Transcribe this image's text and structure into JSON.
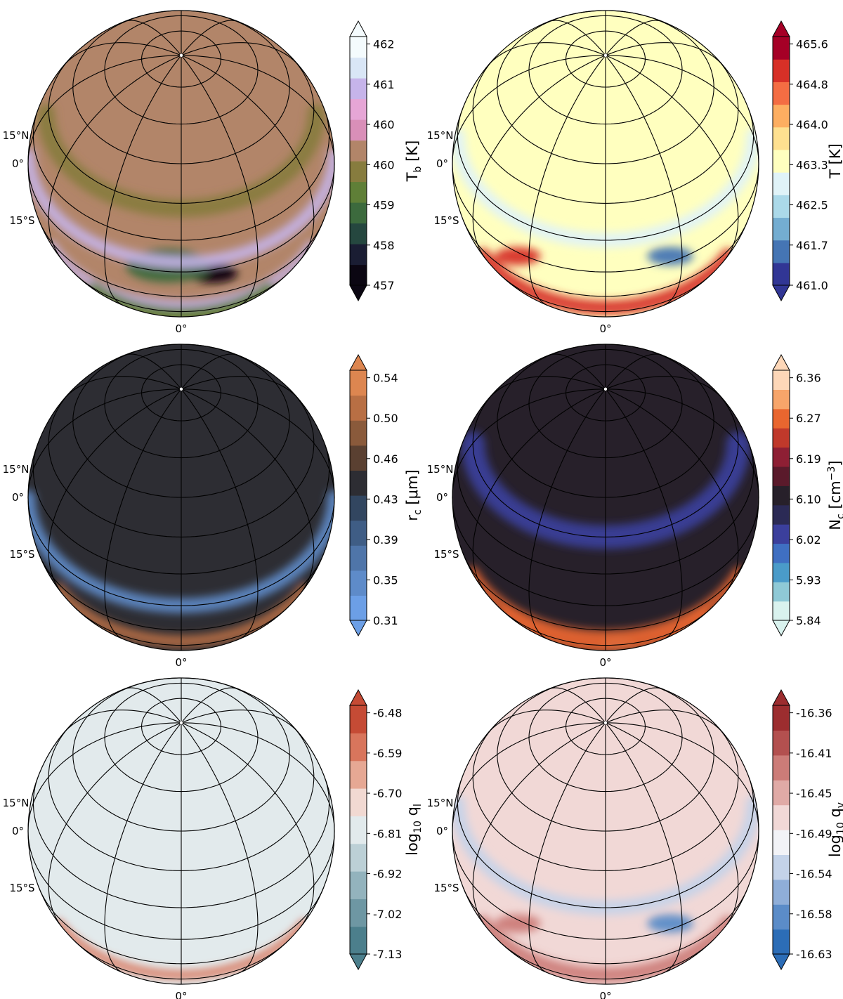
{
  "chart_data": [
    {
      "type": "heatmap",
      "projection": "orthographic",
      "colorbar": {
        "label": "T",
        "label_sub": "b",
        "label_units": " [K]",
        "ticks": [
          "457",
          "458",
          "459",
          "460",
          "460",
          "461",
          "462"
        ],
        "extend": "both",
        "colors": [
          "#0b0612",
          "#1a1d33",
          "#25473f",
          "#3c6a3d",
          "#5f7f37",
          "#877c3e",
          "#b28569",
          "#d98fb8",
          "#e6a6d6",
          "#c6b4ea",
          "#d9e6f6",
          "#f4fbfd"
        ]
      },
      "latitude_labels": [
        "15°N",
        "0°",
        "15°S"
      ],
      "longitude_labels": [
        "0°"
      ],
      "features": [
        {
          "kind": "spot",
          "lon": 12,
          "lat": -2,
          "level": 0.02,
          "size": 0.32
        },
        {
          "kind": "spot",
          "lon": -5,
          "lat": 3,
          "level": 0.25,
          "size": 0.55
        },
        {
          "kind": "band",
          "lat": 5,
          "level": 0.78,
          "width": 4
        },
        {
          "kind": "band",
          "lat": -22,
          "level": 0.78,
          "width": 3
        },
        {
          "kind": "band",
          "lat": -35,
          "level": 0.4,
          "width": 5
        },
        {
          "kind": "band",
          "lat": 28,
          "level": 0.45,
          "width": 6
        }
      ]
    },
    {
      "type": "heatmap",
      "projection": "orthographic",
      "colorbar": {
        "label": "T",
        "label_sub": "",
        "label_units": " [K]",
        "ticks": [
          "461.0",
          "461.7",
          "462.5",
          "463.3",
          "464.0",
          "464.8",
          "465.6"
        ],
        "extend": "both",
        "colors": [
          "#313695",
          "#4575b4",
          "#74add1",
          "#abd9e9",
          "#e0f3f8",
          "#ffffbf",
          "#fee090",
          "#fdae61",
          "#f46d43",
          "#d73027",
          "#a50026"
        ]
      },
      "latitude_labels": [
        "15°N",
        "0°",
        "15°S"
      ],
      "longitude_labels": [
        "0°"
      ],
      "features": [
        {
          "kind": "spot",
          "lon": 25,
          "lat": 3,
          "level": 0.1,
          "size": 0.3
        },
        {
          "kind": "spot",
          "lon": -35,
          "lat": -2,
          "level": 0.85,
          "size": 0.3
        },
        {
          "kind": "band",
          "lat": -25,
          "level": 0.9,
          "width": 5
        },
        {
          "kind": "band",
          "lat": 15,
          "level": 0.38,
          "width": 5
        }
      ]
    },
    {
      "type": "heatmap",
      "projection": "orthographic",
      "colorbar": {
        "label": "r",
        "label_sub": "c",
        "label_units": " [μm]",
        "ticks": [
          "0.31",
          "0.35",
          "0.39",
          "0.43",
          "0.46",
          "0.50",
          "0.54"
        ],
        "extend": "both",
        "colors": [
          "#6c9fe6",
          "#5e8bc9",
          "#4f75a9",
          "#3f5d85",
          "#324660",
          "#2d2d33",
          "#5a4031",
          "#8a5a3b",
          "#b86f44",
          "#dd8650"
        ]
      },
      "latitude_labels": [
        "15°N",
        "0°",
        "15°S"
      ],
      "longitude_labels": [
        "0°"
      ],
      "features": [
        {
          "kind": "band",
          "lat": -25,
          "level": 0.9,
          "width": 4
        },
        {
          "kind": "band",
          "lat": 0,
          "level": 0.08,
          "width": 5
        }
      ]
    },
    {
      "type": "heatmap",
      "projection": "orthographic",
      "colorbar": {
        "label": "N",
        "label_sub": "c",
        "label_units": " [cm",
        "label_sup": "−3",
        "label_tail": "]",
        "ticks": [
          "5.84",
          "5.93",
          "6.02",
          "6.10",
          "6.19",
          "6.27",
          "6.36"
        ],
        "extend": "both",
        "colors": [
          "#d9f2ee",
          "#8fc9d6",
          "#4a9bc9",
          "#3f6fc2",
          "#3b3f9c",
          "#2b2a55",
          "#27202a",
          "#5a1a2b",
          "#8e1f34",
          "#c0392b",
          "#e9662f",
          "#f7a56a",
          "#fdd7b8"
        ]
      },
      "latitude_labels": [
        "15°N",
        "0°",
        "15°S"
      ],
      "longitude_labels": [
        "0°"
      ],
      "features": [
        {
          "kind": "spot",
          "lon": 5,
          "lat": -28,
          "level": 0.18,
          "size": 0.2
        },
        {
          "kind": "band",
          "lat": -20,
          "level": 0.85,
          "width": 4
        },
        {
          "kind": "band",
          "lat": -32,
          "level": 0.82,
          "width": 4
        },
        {
          "kind": "band",
          "lat": 30,
          "level": 0.35,
          "width": 8
        }
      ]
    },
    {
      "type": "heatmap",
      "projection": "orthographic",
      "colorbar": {
        "label": "log",
        "label_sub": "10",
        "label_units": " q",
        "label_sub2": "l",
        "ticks": [
          "-7.13",
          "-7.02",
          "-6.92",
          "-6.81",
          "-6.70",
          "-6.59",
          "-6.48"
        ],
        "extend": "both",
        "colors": [
          "#4c7f8c",
          "#6e97a3",
          "#93b3bd",
          "#bcd0d6",
          "#e2eaec",
          "#f1d9d2",
          "#e6a894",
          "#d8755c",
          "#c54b35"
        ]
      },
      "latitude_labels": [
        "15°N",
        "0°",
        "15°S"
      ],
      "longitude_labels": [
        "0°"
      ],
      "features": [
        {
          "kind": "band",
          "lat": -25,
          "level": 0.85,
          "width": 3
        },
        {
          "kind": "band",
          "lat": 0,
          "level": 0.45,
          "width": 5
        }
      ]
    },
    {
      "type": "heatmap",
      "projection": "orthographic",
      "colorbar": {
        "label": "log",
        "label_sub": "10",
        "label_units": " q",
        "label_sub2": "v",
        "ticks": [
          "-16.63",
          "-16.58",
          "-16.54",
          "-16.49",
          "-16.45",
          "-16.41",
          "-16.36"
        ],
        "extend": "both",
        "colors": [
          "#2c6db7",
          "#5b8cc8",
          "#8faed8",
          "#c4d3e9",
          "#f2f3f7",
          "#f1d8d6",
          "#e0aaa6",
          "#cc7c78",
          "#b3504f",
          "#9c2d2f"
        ]
      },
      "latitude_labels": [
        "15°N",
        "0°",
        "15°S"
      ],
      "longitude_labels": [
        "0°"
      ],
      "features": [
        {
          "kind": "spot",
          "lon": 25,
          "lat": 3,
          "level": 0.1,
          "size": 0.3
        },
        {
          "kind": "spot",
          "lon": -35,
          "lat": -2,
          "level": 0.78,
          "size": 0.3
        },
        {
          "kind": "band",
          "lat": -25,
          "level": 0.82,
          "width": 5
        },
        {
          "kind": "band",
          "lat": 15,
          "level": 0.35,
          "width": 5
        }
      ]
    }
  ]
}
